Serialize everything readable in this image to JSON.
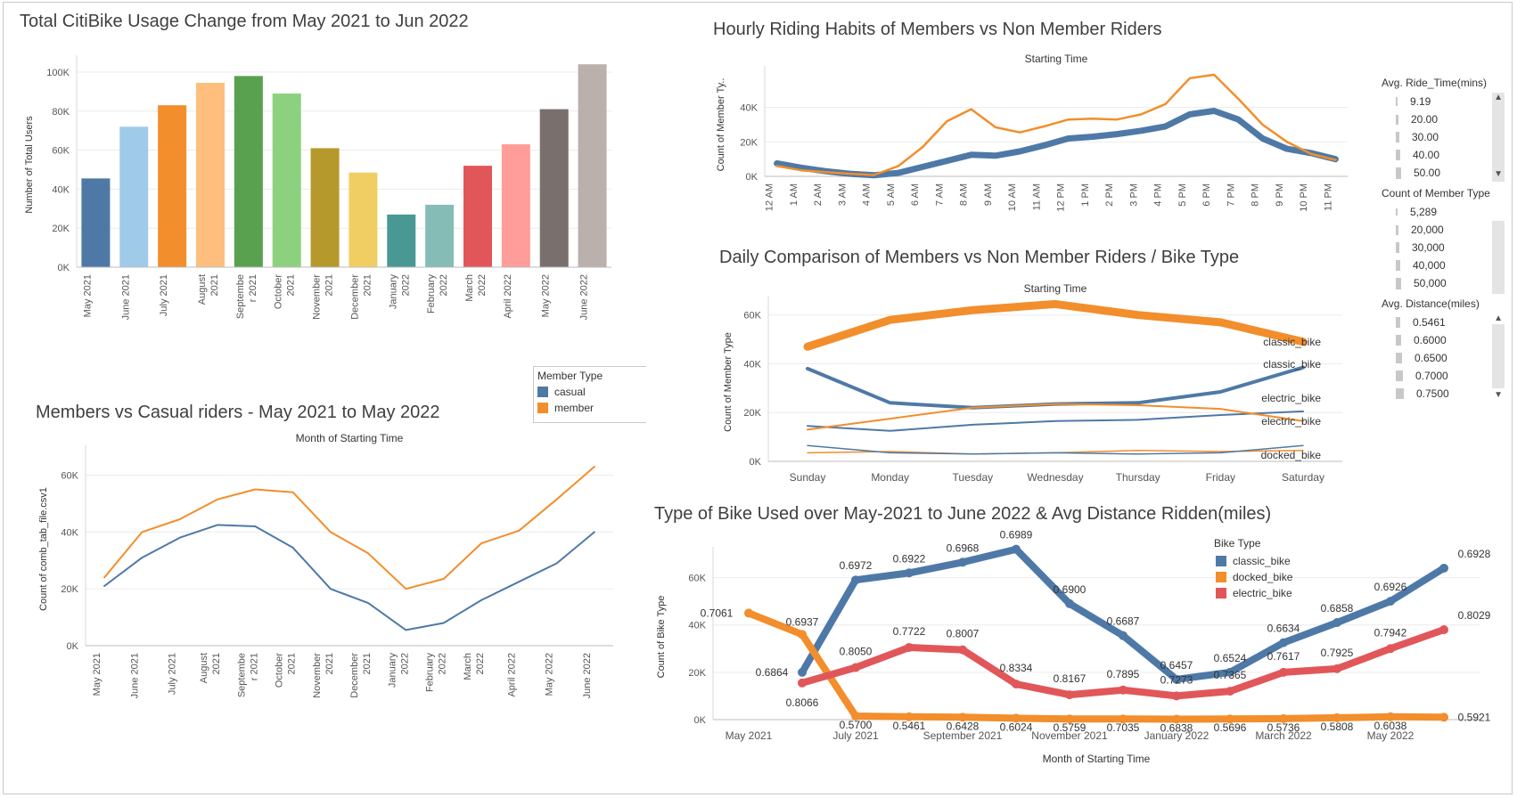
{
  "panels": {
    "usage": {
      "title": "Total CitiBike Usage Change from May 2021 to Jun 2022"
    },
    "hourly": {
      "title": "Hourly Riding Habits of Members vs Non Member Riders"
    },
    "daily": {
      "title": "Daily Comparison of Members vs Non Member Riders / Bike Type"
    },
    "casual": {
      "title": "Members vs Casual riders - May 2021 to May 2022"
    },
    "biketype": {
      "title": "Type of Bike Used over May-2021 to June 2022 & Avg Distance Ridden(miles)"
    }
  },
  "legends": {
    "member_type": {
      "title": "Member Type",
      "items": [
        {
          "label": "casual",
          "color": "#4e79a7"
        },
        {
          "label": "member",
          "color": "#f28e2b"
        }
      ]
    },
    "bike_type": {
      "title": "Bike Type",
      "items": [
        {
          "label": "classic_bike",
          "color": "#4e79a7"
        },
        {
          "label": "docked_bike",
          "color": "#f28e2b"
        },
        {
          "label": "electric_bike",
          "color": "#e15759"
        }
      ]
    },
    "ride_time": {
      "title": "Avg. Ride_Time(mins)",
      "items": [
        "9.19",
        "20.00",
        "30.00",
        "40.00",
        "50.00"
      ]
    },
    "member_count": {
      "title": "Count of Member Type",
      "items": [
        "5,289",
        "20,000",
        "30,000",
        "40,000",
        "50,000"
      ]
    },
    "distance": {
      "title": "Avg. Distance(miles)",
      "items": [
        "0.5461",
        "0.6000",
        "0.6500",
        "0.7000",
        "0.7500"
      ]
    }
  },
  "chart_data": [
    {
      "id": "usage",
      "type": "bar",
      "ylabel": "Number of Total Users",
      "ylim": [
        0,
        105000
      ],
      "yticks": [
        0,
        20000,
        40000,
        60000,
        80000,
        100000
      ],
      "ytick_labels": [
        "0K",
        "20K",
        "40K",
        "60K",
        "80K",
        "100K"
      ],
      "categories": [
        "May 2021",
        "June 2021",
        "July 2021",
        "August 2021",
        "September 2021",
        "October 2021",
        "November 2021",
        "December 2021",
        "January 2022",
        "February 2022",
        "March 2022",
        "April 2022",
        "May 2022",
        "June 2022"
      ],
      "tick_labels": [
        [
          "May 2021"
        ],
        [
          "June 2021"
        ],
        [
          "July 2021"
        ],
        [
          "August",
          "2021"
        ],
        [
          "Septembe",
          "r 2021"
        ],
        [
          "October",
          "2021"
        ],
        [
          "November",
          "2021"
        ],
        [
          "December",
          "2021"
        ],
        [
          "January",
          "2022"
        ],
        [
          "February",
          "2022"
        ],
        [
          "March",
          "2022"
        ],
        [
          "April 2022"
        ],
        [
          "May 2022"
        ],
        [
          "June 2022"
        ]
      ],
      "values": [
        45500,
        72000,
        83000,
        94500,
        98000,
        89000,
        61000,
        48500,
        27000,
        32000,
        52000,
        63000,
        81000,
        104000
      ],
      "colors": [
        "#4e79a7",
        "#a0cbe8",
        "#f28e2b",
        "#ffbe7d",
        "#59a14f",
        "#8cd17d",
        "#b6992d",
        "#f1ce63",
        "#499894",
        "#86bcb6",
        "#e15759",
        "#ff9d9a",
        "#79706e",
        "#bab0ac"
      ]
    },
    {
      "id": "hourly",
      "type": "line",
      "top_label": "Starting Time",
      "ylabel": "Count of Member Ty..",
      "ylim": [
        0,
        60000
      ],
      "yticks": [
        0,
        20000,
        40000
      ],
      "ytick_labels": [
        "0K",
        "20K",
        "40K"
      ],
      "categories": [
        "12 AM",
        "1 AM",
        "2 AM",
        "3 AM",
        "4 AM",
        "5 AM",
        "6 AM",
        "7 AM",
        "8 AM",
        "9 AM",
        "10 AM",
        "11 AM",
        "12 PM",
        "1 PM",
        "2 PM",
        "3 PM",
        "4 PM",
        "5 PM",
        "6 PM",
        "7 PM",
        "8 PM",
        "9 PM",
        "10 PM",
        "11 PM"
      ],
      "series": [
        {
          "name": "casual",
          "color": "#4e79a7",
          "width": 7,
          "values": [
            7500,
            5000,
            3000,
            1500,
            600,
            2000,
            5500,
            9000,
            12500,
            12000,
            14500,
            18000,
            22000,
            23000,
            24500,
            26500,
            29000,
            36000,
            38000,
            33000,
            22000,
            16000,
            13500,
            10000
          ]
        },
        {
          "name": "member",
          "color": "#f28e2b",
          "width": 2.5,
          "values": [
            6000,
            3500,
            2500,
            1500,
            800,
            6000,
            17000,
            32000,
            39000,
            28500,
            25500,
            29000,
            33000,
            33500,
            33000,
            36000,
            42000,
            57000,
            59000,
            45000,
            30000,
            20000,
            13000,
            9500
          ]
        }
      ]
    },
    {
      "id": "daily",
      "type": "line",
      "top_label": "Starting Time",
      "ylabel": "Count of Member Type",
      "ylim": [
        0,
        65000
      ],
      "yticks": [
        0,
        20000,
        40000,
        60000
      ],
      "ytick_labels": [
        "0K",
        "20K",
        "40K",
        "60K"
      ],
      "categories": [
        "Sunday",
        "Monday",
        "Tuesday",
        "Wednesday",
        "Thursday",
        "Friday",
        "Saturday"
      ],
      "end_labels": [
        "classic_bike",
        "classic_bike",
        "electric_bike",
        "electric_bike",
        "docked_bike"
      ],
      "series": [
        {
          "name": "classic_bike",
          "color": "#f28e2b",
          "width": 9,
          "values": [
            47000,
            58000,
            62000,
            64500,
            60000,
            57000,
            49000
          ]
        },
        {
          "name": "classic_bike",
          "color": "#4e79a7",
          "width": 4,
          "values": [
            38000,
            24000,
            22000,
            23500,
            24000,
            28500,
            38500
          ]
        },
        {
          "name": "electric_bike",
          "color": "#4e79a7",
          "width": 2,
          "values": [
            14500,
            12500,
            15000,
            16500,
            17000,
            19000,
            20500
          ]
        },
        {
          "name": "electric_bike",
          "color": "#f28e2b",
          "width": 2,
          "values": [
            13000,
            17500,
            22000,
            23500,
            23000,
            21500,
            16500
          ]
        },
        {
          "name": "docked_bike",
          "color": "#f28e2b",
          "width": 1.5,
          "values": [
            3500,
            4000,
            3000,
            3500,
            4500,
            4000,
            4500
          ]
        },
        {
          "name": "docked_bike",
          "color": "#4e79a7",
          "width": 1.5,
          "values": [
            6500,
            3500,
            3000,
            3500,
            3000,
            3500,
            6500
          ]
        }
      ]
    },
    {
      "id": "casual",
      "type": "line",
      "top_label": "Month of Starting Time",
      "ylabel": "Count of comb_tab_file.csv1",
      "ylim": [
        0,
        68000
      ],
      "yticks": [
        0,
        20000,
        40000,
        60000
      ],
      "ytick_labels": [
        "0K",
        "20K",
        "40K",
        "60K"
      ],
      "categories": [
        "May 2021",
        "June 2021",
        "July 2021",
        "August 2021",
        "September 2021",
        "October 2021",
        "November 2021",
        "December 2021",
        "January 2022",
        "February 2022",
        "March 2022",
        "April 2022",
        "May 2022",
        "June 2022"
      ],
      "tick_labels": [
        [
          "May 2021"
        ],
        [
          "June 2021"
        ],
        [
          "July 2021"
        ],
        [
          "August",
          "2021"
        ],
        [
          "Septembe",
          "r 2021"
        ],
        [
          "October",
          "2021"
        ],
        [
          "November",
          "2021"
        ],
        [
          "December",
          "2021"
        ],
        [
          "January",
          "2022"
        ],
        [
          "February",
          "2022"
        ],
        [
          "March",
          "2022"
        ],
        [
          "April 2022"
        ],
        [
          "May 2022"
        ],
        [
          "June 2022"
        ]
      ],
      "series": [
        {
          "name": "casual",
          "color": "#4e79a7",
          "width": 2,
          "values": [
            21000,
            31000,
            38000,
            42500,
            42000,
            34500,
            20000,
            15000,
            5500,
            8000,
            16000,
            22500,
            29000,
            40000
          ]
        },
        {
          "name": "member",
          "color": "#f28e2b",
          "width": 2,
          "values": [
            24000,
            40000,
            44500,
            51500,
            55000,
            54000,
            40000,
            32500,
            20000,
            23500,
            36000,
            40500,
            51500,
            63000
          ]
        }
      ]
    },
    {
      "id": "biketype",
      "type": "line",
      "xlabel": "Month of Starting Time",
      "ylabel": "Count of Bike Type",
      "ylim": [
        0,
        70000
      ],
      "yticks": [
        0,
        20000,
        40000,
        60000
      ],
      "ytick_labels": [
        "0K",
        "20K",
        "40K",
        "60K"
      ],
      "categories": [
        "May 2021",
        "June 2021",
        "July 2021",
        "August 2021",
        "September 2021",
        "October 2021",
        "November 2021",
        "December 2021",
        "January 2022",
        "February 2022",
        "March 2022",
        "April 2022",
        "May 2022",
        "June 2022"
      ],
      "tick_labels": [
        "May 2021",
        "",
        "July 2021",
        "",
        "September 2021",
        "",
        "November 2021",
        "",
        "January 2022",
        "",
        "March 2022",
        "",
        "May 2022",
        ""
      ],
      "series": [
        {
          "name": "classic_bike",
          "color": "#4e79a7",
          "values": [
            null,
            20000,
            59000,
            62000,
            66500,
            72000,
            49000,
            35500,
            17000,
            20000,
            32500,
            41000,
            50000,
            64000
          ],
          "labels": [
            "",
            "0.6864",
            "0.6972",
            "0.6922",
            "0.6968",
            "0.6989",
            "0.6900",
            "0.6687",
            "0.6457",
            "0.6524",
            "0.6634",
            "0.6858",
            "0.6926",
            "0.6928"
          ]
        },
        {
          "name": "docked_bike",
          "color": "#f28e2b",
          "values": [
            45000,
            36000,
            1500,
            1200,
            1000,
            600,
            300,
            300,
            200,
            300,
            400,
            800,
            1200,
            1000
          ],
          "labels": [
            "0.7061",
            "0.6937",
            "0.5700",
            "0.5461",
            "0.6428",
            "0.6024",
            "0.5759",
            "0.7035",
            "0.6838",
            "0.5696",
            "0.5736",
            "0.5808",
            "0.6038",
            "0.5921"
          ]
        },
        {
          "name": "electric_bike",
          "color": "#e15759",
          "values": [
            null,
            15500,
            22000,
            30500,
            29500,
            15000,
            10500,
            12500,
            10000,
            12000,
            20000,
            21500,
            30000,
            38000
          ],
          "labels": [
            "",
            "0.8066",
            "0.8050",
            "0.7722",
            "0.8007",
            "0.8334",
            "0.8167",
            "0.7895",
            "0.7273",
            "0.7365",
            "0.7617",
            "0.7925",
            "0.7942",
            "0.8029"
          ]
        }
      ]
    }
  ]
}
